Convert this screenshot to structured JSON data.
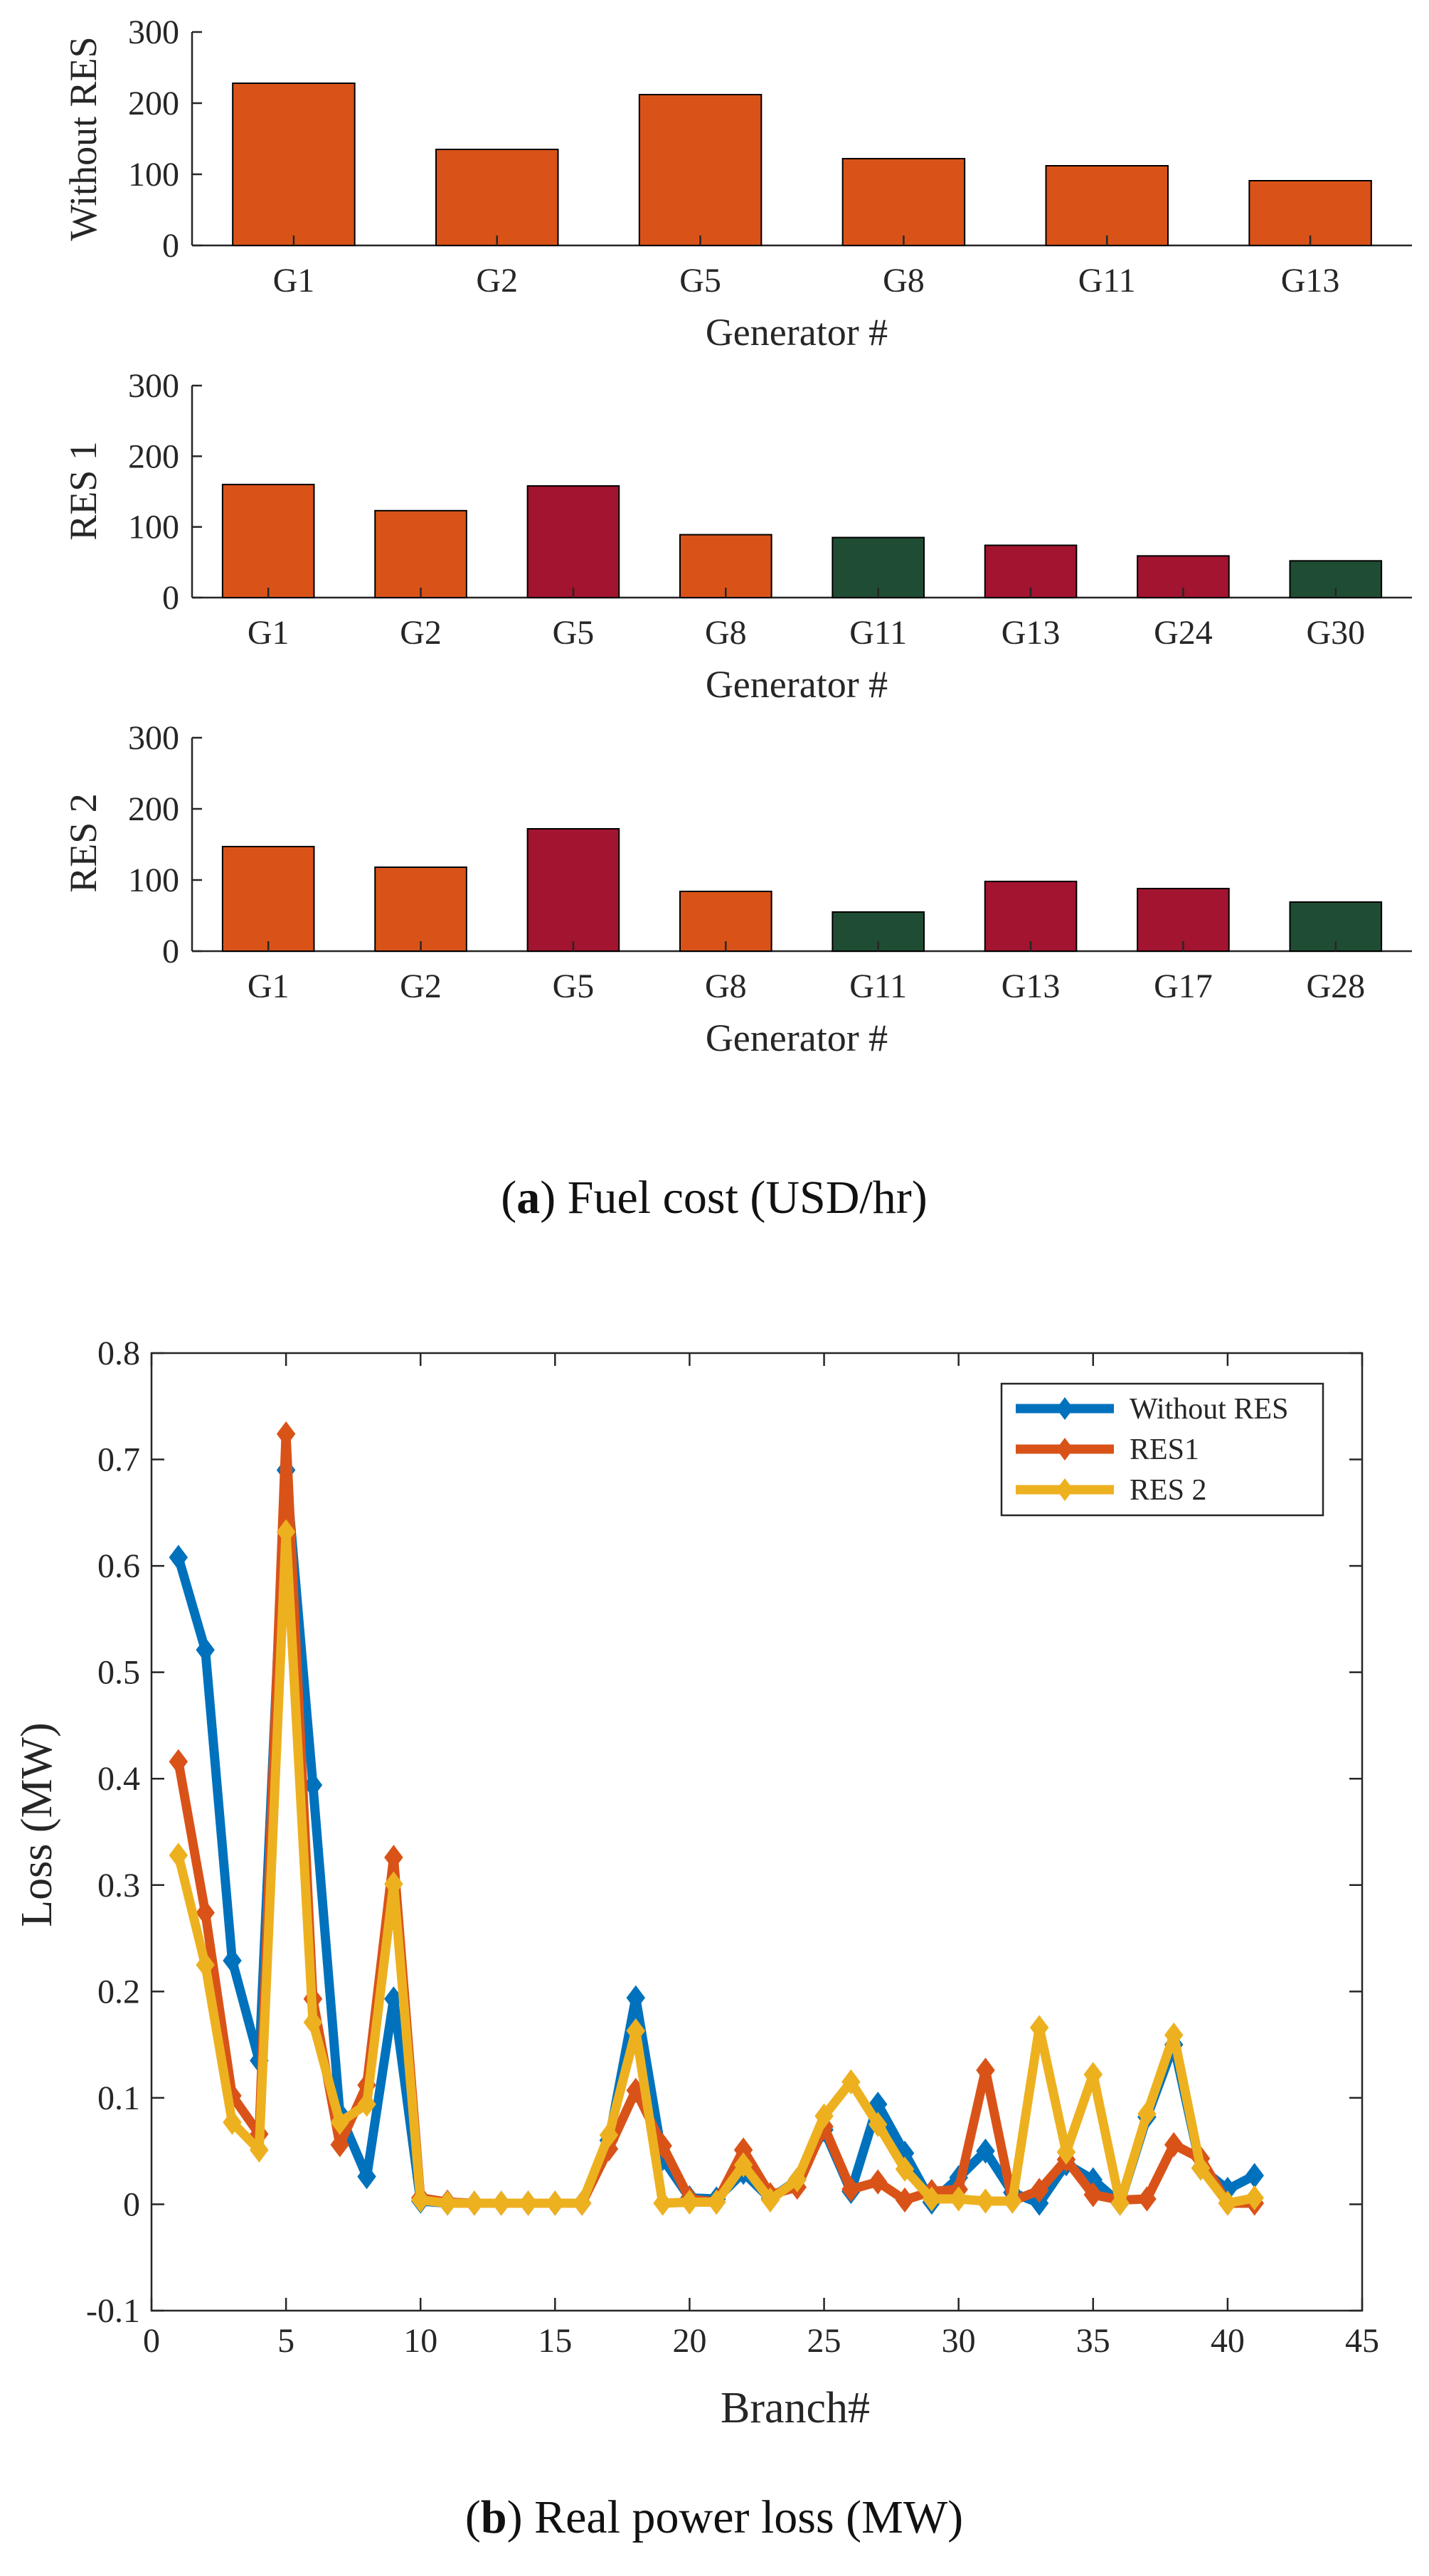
{
  "colors": {
    "conventional": "#D95319",
    "wind": "#A2142F",
    "solar": "#1F4D34",
    "without_res": "#0072BD",
    "res1": "#D95319",
    "res2": "#EDB120",
    "axis": "#262626"
  },
  "captions": {
    "a_letter": "a",
    "a_text": "Fuel cost (USD/hr)",
    "b_letter": "b",
    "b_text": "Real power loss (MW)"
  },
  "chart_data": [
    {
      "type": "bar",
      "ylabel": "Without RES",
      "xlabel": "Generator #",
      "ylim": [
        0,
        300
      ],
      "yticks": [
        0,
        100,
        200,
        300
      ],
      "categories": [
        "G1",
        "G2",
        "G5",
        "G8",
        "G11",
        "G13"
      ],
      "values": [
        228,
        135,
        212,
        122,
        112,
        91
      ],
      "kinds": [
        "conventional",
        "conventional",
        "conventional",
        "conventional",
        "conventional",
        "conventional"
      ]
    },
    {
      "type": "bar",
      "ylabel": "RES 1",
      "xlabel": "Generator #",
      "ylim": [
        0,
        300
      ],
      "yticks": [
        0,
        100,
        200,
        300
      ],
      "categories": [
        "G1",
        "G2",
        "G5",
        "G8",
        "G11",
        "G13",
        "G24",
        "G30"
      ],
      "values": [
        160,
        123,
        158,
        89,
        85,
        74,
        59,
        52
      ],
      "kinds": [
        "conventional",
        "conventional",
        "wind",
        "conventional",
        "solar",
        "wind",
        "wind",
        "solar"
      ]
    },
    {
      "type": "bar",
      "ylabel": "RES 2",
      "xlabel": "Generator #",
      "ylim": [
        0,
        300
      ],
      "yticks": [
        0,
        100,
        200,
        300
      ],
      "categories": [
        "G1",
        "G2",
        "G5",
        "G8",
        "G11",
        "G13",
        "G17",
        "G28"
      ],
      "values": [
        147,
        118,
        172,
        84,
        55,
        98,
        88,
        69
      ],
      "kinds": [
        "conventional",
        "conventional",
        "wind",
        "conventional",
        "solar",
        "wind",
        "wind",
        "solar"
      ]
    },
    {
      "type": "line",
      "xlabel": "Branch#",
      "ylabel": "Loss (MW)",
      "xlim": [
        0,
        45
      ],
      "ylim": [
        -0.1,
        0.8
      ],
      "xticks": [
        0,
        5,
        10,
        15,
        20,
        25,
        30,
        35,
        40,
        45
      ],
      "yticks": [
        -0.1,
        0,
        0.1,
        0.2,
        0.3,
        0.4,
        0.5,
        0.6,
        0.7,
        0.8
      ],
      "x": [
        1,
        2,
        3,
        4,
        5,
        6,
        7,
        8,
        9,
        10,
        11,
        12,
        13,
        14,
        15,
        16,
        17,
        18,
        19,
        20,
        21,
        22,
        23,
        24,
        25,
        26,
        27,
        28,
        29,
        30,
        31,
        32,
        33,
        34,
        35,
        36,
        37,
        38,
        39,
        40,
        41
      ],
      "series": [
        {
          "name": "Without RES",
          "color_key": "without_res",
          "values": [
            0.608,
            0.521,
            0.229,
            0.135,
            0.69,
            0.394,
            0.085,
            0.026,
            0.193,
            0.003,
            0.001,
            0.001,
            0.001,
            0.001,
            0.001,
            0.001,
            0.06,
            0.194,
            0.043,
            0.006,
            0.005,
            0.03,
            0.005,
            0.023,
            0.07,
            0.012,
            0.094,
            0.048,
            0.002,
            0.025,
            0.05,
            0.011,
            0.001,
            0.038,
            0.023,
            0.001,
            0.082,
            0.15,
            0.034,
            0.014,
            0.027
          ]
        },
        {
          "name": "RES1",
          "color_key": "res1",
          "values": [
            0.416,
            0.274,
            0.102,
            0.066,
            0.724,
            0.193,
            0.056,
            0.112,
            0.326,
            0.006,
            0.002,
            0.001,
            0.001,
            0.001,
            0.001,
            0.001,
            0.052,
            0.107,
            0.055,
            0.005,
            0.002,
            0.051,
            0.009,
            0.016,
            0.073,
            0.014,
            0.021,
            0.004,
            0.012,
            0.014,
            0.126,
            0.003,
            0.013,
            0.042,
            0.009,
            0.004,
            0.005,
            0.056,
            0.043,
            0.001,
            0.001
          ]
        },
        {
          "name": "RES 2",
          "color_key": "res2",
          "values": [
            0.328,
            0.225,
            0.077,
            0.051,
            0.632,
            0.171,
            0.077,
            0.094,
            0.301,
            0.004,
            0.001,
            0.001,
            0.001,
            0.001,
            0.001,
            0.001,
            0.065,
            0.163,
            0.001,
            0.002,
            0.002,
            0.037,
            0.004,
            0.023,
            0.083,
            0.115,
            0.075,
            0.033,
            0.005,
            0.005,
            0.003,
            0.003,
            0.166,
            0.049,
            0.122,
            0.001,
            0.085,
            0.159,
            0.034,
            0.001,
            0.006
          ]
        }
      ]
    }
  ]
}
